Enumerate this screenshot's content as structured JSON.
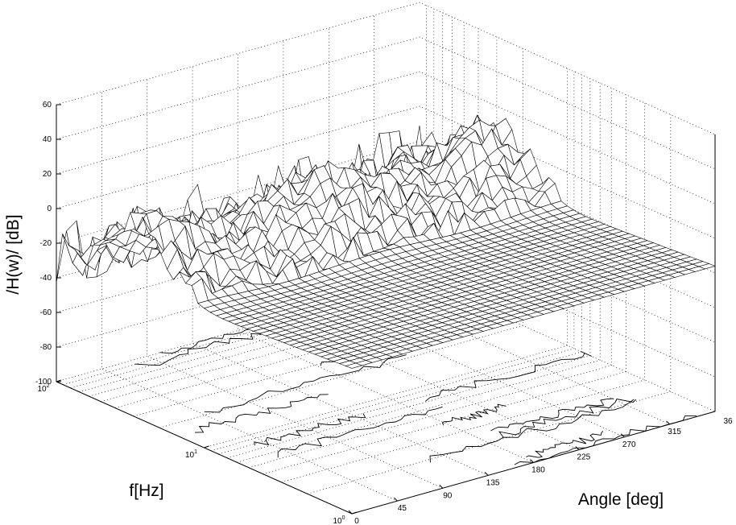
{
  "chart_data": {
    "type": "surface3d",
    "title": "",
    "zlabel": "/H(w)/ [dB]",
    "xlabel": "Angle [deg]",
    "ylabel": "f[Hz]",
    "z_ticks": [
      60,
      40,
      20,
      0,
      -20,
      -40,
      -60,
      -80,
      -100
    ],
    "zlim": [
      -100,
      60
    ],
    "x_ticks": [
      0,
      45,
      90,
      135,
      180,
      225,
      270,
      315
    ],
    "x_tick_partial": "36",
    "xlim": [
      0,
      360
    ],
    "y_ticks": [
      {
        "base": "10",
        "exp": "0"
      },
      {
        "base": "10",
        "exp": "1"
      },
      {
        "base": "10",
        "exp": "2"
      }
    ],
    "ylim": [
      1,
      100
    ],
    "yscale": "log",
    "grid": true,
    "contour_under_surface": true,
    "surface_summary": {
      "low_frequency_level_db": [
        -50,
        40
      ],
      "mid_frequency_peak_db": 50,
      "high_frequency_level_db": [
        -30,
        10
      ]
    }
  }
}
